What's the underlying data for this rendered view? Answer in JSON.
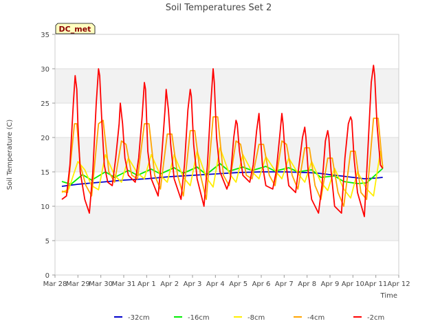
{
  "chart_data": {
    "type": "line",
    "title": "Soil Temperatures Set 2",
    "xlabel": "Time",
    "ylabel": "Soil Temperature (C)",
    "site_label": "DC_met",
    "x_unit": "days",
    "xlim": [
      0,
      15
    ],
    "ylim": [
      0,
      35
    ],
    "grid": true,
    "legend_position": "bottom",
    "x_tick_labels": [
      "Mar 28",
      "Mar 29",
      "Mar 30",
      "Mar 31",
      "Apr 1",
      "Apr 2",
      "Apr 3",
      "Apr 4",
      "Apr 5",
      "Apr 6",
      "Apr 7",
      "Apr 8",
      "Apr 9",
      "Apr 10",
      "Apr 11",
      "Apr 12"
    ],
    "y_ticks": [
      0,
      5,
      10,
      15,
      20,
      25,
      30,
      35
    ],
    "series": [
      {
        "name": "-32cm",
        "color": "#0000cc",
        "x": [
          0.3,
          1,
          2,
          3,
          4,
          5,
          6,
          7,
          8,
          9,
          10,
          11,
          11.5,
          12,
          12.5,
          13,
          13.5,
          14,
          14.3
        ],
        "y": [
          12.9,
          13.2,
          13.5,
          13.8,
          14.0,
          14.3,
          14.5,
          14.7,
          14.9,
          15.0,
          15.0,
          14.9,
          14.8,
          14.6,
          14.4,
          14.2,
          14.0,
          14.1,
          14.2
        ]
      },
      {
        "name": "-16cm",
        "color": "#00ee00",
        "x": [
          0.3,
          0.7,
          1.2,
          1.6,
          2.2,
          2.6,
          3.2,
          3.6,
          4.2,
          4.6,
          5.2,
          5.6,
          6.2,
          6.6,
          7.2,
          7.6,
          8.2,
          8.6,
          9.2,
          9.6,
          10.2,
          10.6,
          11.2,
          11.6,
          12.2,
          12.6,
          13.2,
          13.6,
          14.2,
          14.3
        ],
        "y": [
          13.6,
          13.2,
          14.6,
          13.8,
          15.0,
          14.2,
          15.2,
          14.5,
          15.4,
          14.7,
          15.6,
          14.8,
          15.7,
          14.6,
          16.2,
          15.1,
          15.7,
          15.2,
          15.8,
          15.1,
          15.6,
          15.0,
          15.3,
          14.2,
          14.4,
          13.6,
          13.3,
          13.4,
          15.2,
          15.5
        ]
      },
      {
        "name": "-8cm",
        "color": "#ffee00",
        "x": [
          0.3,
          0.6,
          1.0,
          1.3,
          1.6,
          1.9,
          2.2,
          2.6,
          2.9,
          3.2,
          3.6,
          3.9,
          4.2,
          4.6,
          4.9,
          5.2,
          5.6,
          5.9,
          6.2,
          6.6,
          6.9,
          7.2,
          7.6,
          7.9,
          8.2,
          8.6,
          8.9,
          9.2,
          9.6,
          9.9,
          10.2,
          10.6,
          10.9,
          11.2,
          11.6,
          11.9,
          12.2,
          12.6,
          12.9,
          13.2,
          13.6,
          13.9,
          14.2,
          14.3
        ],
        "y": [
          12.0,
          12.5,
          16.5,
          15.3,
          13.0,
          12.4,
          17.5,
          14.5,
          13.5,
          17.0,
          14.8,
          14.0,
          17.5,
          14.5,
          13.5,
          17.5,
          14.2,
          13.0,
          18.0,
          14.2,
          12.8,
          18.5,
          14.8,
          13.5,
          17.5,
          15.0,
          14.0,
          17.2,
          15.2,
          14.0,
          17.0,
          14.8,
          13.5,
          16.5,
          13.5,
          12.3,
          15.5,
          12.5,
          11.2,
          15.0,
          12.5,
          11.5,
          18.0,
          15.8
        ]
      },
      {
        "name": "-4cm",
        "color": "#ffa500",
        "x": [
          0.3,
          0.55,
          0.85,
          0.95,
          1.1,
          1.35,
          1.6,
          1.9,
          2.1,
          2.35,
          2.6,
          2.9,
          3.1,
          3.35,
          3.6,
          3.9,
          4.1,
          4.35,
          4.6,
          4.9,
          5.1,
          5.35,
          5.6,
          5.9,
          6.1,
          6.35,
          6.6,
          6.9,
          7.1,
          7.35,
          7.6,
          7.9,
          8.1,
          8.35,
          8.6,
          8.9,
          9.1,
          9.35,
          9.6,
          9.9,
          10.1,
          10.35,
          10.6,
          10.9,
          11.1,
          11.35,
          11.6,
          11.9,
          12.1,
          12.35,
          12.6,
          12.9,
          13.1,
          13.35,
          13.6,
          13.9,
          14.1,
          14.3
        ],
        "y": [
          12.2,
          12.0,
          22.0,
          22.0,
          16.0,
          13.0,
          11.5,
          22.0,
          22.5,
          15.0,
          13.5,
          19.5,
          19.0,
          14.5,
          14.0,
          22.0,
          22.0,
          14.5,
          12.5,
          20.5,
          20.5,
          14.5,
          11.5,
          21.0,
          21.0,
          14.5,
          11.0,
          23.0,
          23.0,
          14.5,
          13.0,
          19.5,
          19.0,
          14.5,
          14.0,
          19.0,
          19.0,
          14.5,
          13.0,
          19.5,
          19.0,
          14.5,
          12.5,
          18.5,
          18.5,
          13.0,
          11.0,
          17.0,
          17.0,
          12.0,
          10.0,
          18.0,
          18.0,
          12.0,
          11.0,
          22.8,
          22.8,
          15.5
        ]
      },
      {
        "name": "-2cm",
        "color": "#ff0000",
        "x": [
          0.3,
          0.5,
          0.65,
          0.8,
          0.88,
          0.95,
          1.0,
          1.1,
          1.3,
          1.5,
          1.65,
          1.8,
          1.9,
          1.95,
          2.05,
          2.15,
          2.3,
          2.5,
          2.65,
          2.8,
          2.85,
          2.95,
          3.05,
          3.2,
          3.5,
          3.65,
          3.8,
          3.9,
          3.95,
          4.05,
          4.2,
          4.5,
          4.65,
          4.8,
          4.85,
          4.95,
          5.05,
          5.2,
          5.5,
          5.65,
          5.8,
          5.9,
          5.95,
          6.05,
          6.2,
          6.5,
          6.65,
          6.8,
          6.9,
          6.95,
          7.05,
          7.2,
          7.5,
          7.65,
          7.8,
          7.9,
          7.95,
          8.05,
          8.2,
          8.5,
          8.65,
          8.8,
          8.9,
          8.95,
          9.05,
          9.2,
          9.5,
          9.65,
          9.8,
          9.9,
          9.95,
          10.05,
          10.2,
          10.5,
          10.65,
          10.8,
          10.9,
          10.95,
          11.05,
          11.2,
          11.5,
          11.65,
          11.8,
          11.9,
          11.95,
          12.05,
          12.2,
          12.5,
          12.65,
          12.8,
          12.9,
          12.95,
          13.05,
          13.2,
          13.5,
          13.65,
          13.8,
          13.9,
          13.95,
          14.05,
          14.2,
          14.3
        ],
        "y": [
          11.0,
          11.5,
          16.0,
          25.0,
          29.0,
          27.0,
          22.0,
          15.0,
          11.0,
          9.0,
          15.0,
          25.0,
          30.0,
          29.0,
          22.0,
          16.0,
          13.5,
          13.0,
          17.0,
          22.0,
          25.0,
          22.0,
          17.0,
          14.5,
          13.5,
          17.0,
          23.0,
          28.0,
          27.0,
          18.0,
          14.0,
          11.5,
          17.0,
          24.0,
          27.0,
          24.0,
          19.0,
          14.0,
          11.0,
          16.0,
          24.0,
          27.0,
          26.0,
          19.0,
          14.0,
          10.0,
          16.0,
          25.0,
          30.0,
          28.0,
          20.0,
          15.0,
          12.5,
          14.0,
          20.0,
          22.5,
          22.0,
          18.0,
          14.5,
          13.5,
          16.0,
          21.0,
          23.5,
          21.0,
          16.0,
          13.0,
          12.5,
          15.0,
          20.0,
          23.5,
          22.0,
          17.0,
          13.0,
          12.0,
          16.0,
          20.0,
          21.5,
          20.0,
          15.0,
          11.0,
          9.0,
          13.0,
          19.5,
          21.0,
          20.0,
          15.0,
          10.0,
          9.0,
          17.0,
          22.0,
          23.0,
          22.5,
          17.0,
          12.0,
          8.5,
          18.0,
          28.0,
          30.5,
          29.0,
          22.0,
          16.0,
          15.5
        ]
      }
    ]
  }
}
